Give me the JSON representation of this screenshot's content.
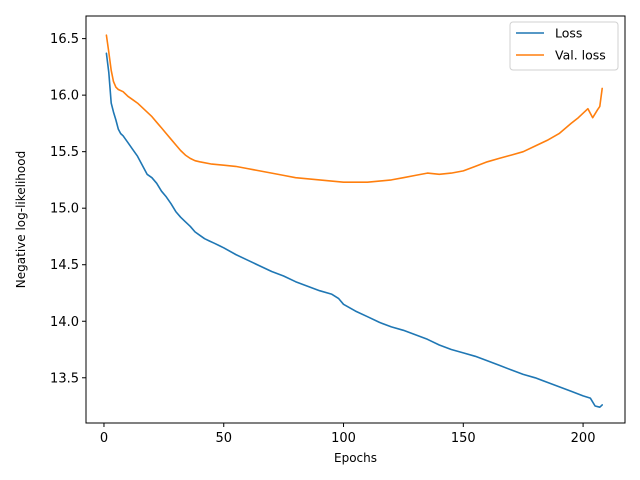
{
  "chart_data": {
    "type": "line",
    "title": "",
    "xlabel": "Epochs",
    "ylabel": "Negative log-likelihood",
    "xlim": [
      -7.5,
      217.5
    ],
    "ylim": [
      13.1,
      16.7
    ],
    "xticks": [
      0,
      50,
      100,
      150,
      200
    ],
    "xtick_labels": [
      "0",
      "50",
      "100",
      "150",
      "200"
    ],
    "yticks": [
      13.5,
      14.0,
      14.5,
      15.0,
      15.5,
      16.0,
      16.5
    ],
    "ytick_labels": [
      "13.5",
      "14.0",
      "14.5",
      "15.0",
      "15.5",
      "16.0",
      "16.5"
    ],
    "grid": false,
    "legend": "top-right",
    "colors": {
      "loss": "#1f77b4",
      "val_loss": "#ff7f0e"
    },
    "series": [
      {
        "name": "Loss",
        "x": [
          1,
          2,
          3,
          4,
          5,
          6,
          7,
          8,
          10,
          12,
          14,
          16,
          18,
          20,
          22,
          24,
          26,
          28,
          30,
          32,
          34,
          36,
          38,
          40,
          42,
          44,
          46,
          48,
          50,
          55,
          60,
          65,
          70,
          75,
          80,
          85,
          90,
          95,
          98,
          100,
          105,
          110,
          115,
          120,
          125,
          130,
          135,
          140,
          145,
          150,
          155,
          160,
          165,
          170,
          175,
          180,
          185,
          190,
          195,
          200,
          203,
          205,
          207,
          208
        ],
        "y": [
          16.37,
          16.2,
          15.93,
          15.85,
          15.78,
          15.7,
          15.66,
          15.64,
          15.58,
          15.52,
          15.46,
          15.38,
          15.3,
          15.27,
          15.22,
          15.15,
          15.1,
          15.04,
          14.97,
          14.92,
          14.88,
          14.84,
          14.79,
          14.76,
          14.73,
          14.71,
          14.69,
          14.67,
          14.65,
          14.59,
          14.54,
          14.49,
          14.44,
          14.4,
          14.35,
          14.31,
          14.27,
          14.24,
          14.2,
          14.15,
          14.09,
          14.04,
          13.99,
          13.95,
          13.92,
          13.88,
          13.84,
          13.79,
          13.75,
          13.72,
          13.69,
          13.65,
          13.61,
          13.57,
          13.53,
          13.5,
          13.46,
          13.42,
          13.38,
          13.34,
          13.32,
          13.25,
          13.24,
          13.26
        ]
      },
      {
        "name": "Val. loss",
        "x": [
          1,
          2,
          3,
          4,
          5,
          6,
          8,
          10,
          12,
          14,
          16,
          18,
          20,
          22,
          24,
          26,
          28,
          30,
          32,
          34,
          36,
          38,
          40,
          45,
          50,
          55,
          60,
          65,
          70,
          75,
          80,
          85,
          90,
          95,
          100,
          105,
          110,
          115,
          120,
          125,
          130,
          135,
          140,
          145,
          150,
          155,
          160,
          165,
          170,
          175,
          180,
          185,
          190,
          195,
          198,
          200,
          202,
          204,
          206,
          207,
          208
        ],
        "y": [
          16.53,
          16.38,
          16.22,
          16.12,
          16.07,
          16.05,
          16.03,
          15.99,
          15.96,
          15.93,
          15.89,
          15.85,
          15.81,
          15.76,
          15.71,
          15.66,
          15.61,
          15.56,
          15.51,
          15.47,
          15.44,
          15.42,
          15.41,
          15.39,
          15.38,
          15.37,
          15.35,
          15.33,
          15.31,
          15.29,
          15.27,
          15.26,
          15.25,
          15.24,
          15.23,
          15.23,
          15.23,
          15.24,
          15.25,
          15.27,
          15.29,
          15.31,
          15.3,
          15.31,
          15.33,
          15.37,
          15.41,
          15.44,
          15.47,
          15.5,
          15.55,
          15.6,
          15.66,
          15.75,
          15.8,
          15.84,
          15.88,
          15.8,
          15.87,
          15.9,
          16.06
        ]
      }
    ]
  }
}
